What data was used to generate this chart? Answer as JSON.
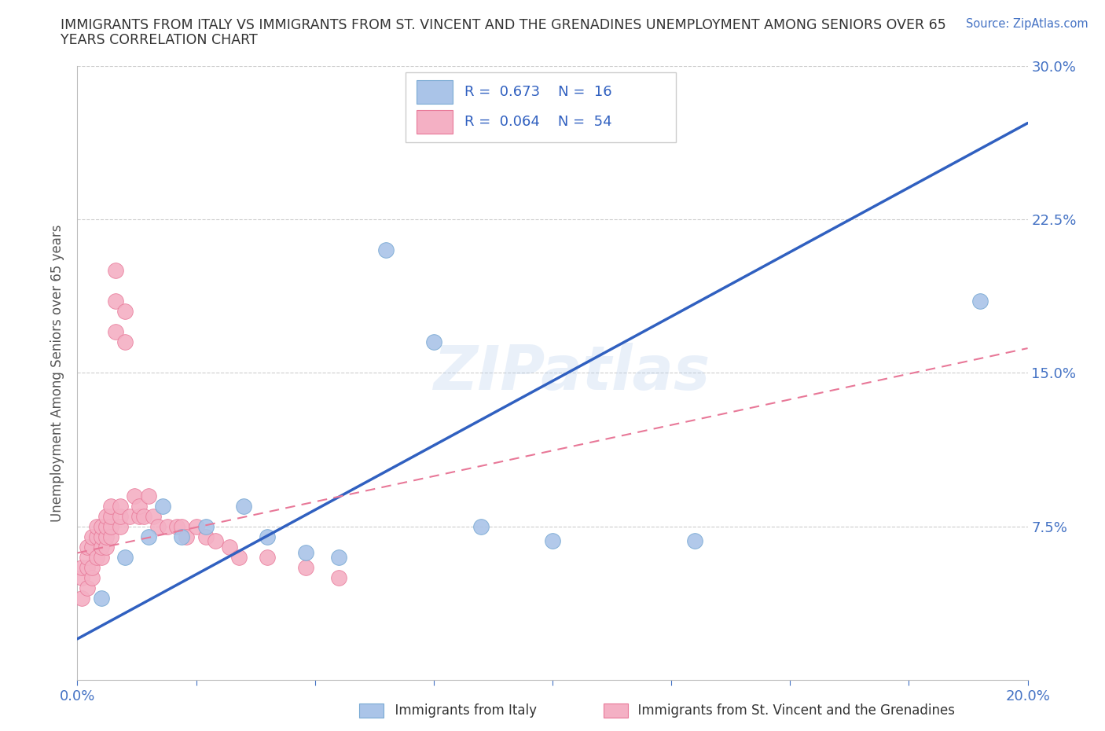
{
  "title_line1": "IMMIGRANTS FROM ITALY VS IMMIGRANTS FROM ST. VINCENT AND THE GRENADINES UNEMPLOYMENT AMONG SENIORS OVER 65",
  "title_line2": "YEARS CORRELATION CHART",
  "source_text": "Source: ZipAtlas.com",
  "ylabel": "Unemployment Among Seniors over 65 years",
  "xlim": [
    0.0,
    0.2
  ],
  "ylim": [
    0.0,
    0.3
  ],
  "title_color": "#333333",
  "tick_color": "#4472c4",
  "watermark": "ZIPatlas",
  "italy_color": "#aac4e8",
  "italy_edge": "#7aaad4",
  "svg_color": "#f4b0c4",
  "svg_edge": "#e87898",
  "blue_line_color": "#3060c0",
  "pink_line_color": "#e87898",
  "legend_text_color": "#3060c0",
  "italy_x": [
    0.005,
    0.01,
    0.015,
    0.018,
    0.022,
    0.027,
    0.035,
    0.04,
    0.048,
    0.055,
    0.065,
    0.075,
    0.085,
    0.1,
    0.13,
    0.19
  ],
  "italy_y": [
    0.04,
    0.06,
    0.07,
    0.085,
    0.07,
    0.075,
    0.085,
    0.07,
    0.062,
    0.06,
    0.21,
    0.165,
    0.075,
    0.068,
    0.068,
    0.185
  ],
  "svg_x": [
    0.001,
    0.001,
    0.001,
    0.002,
    0.002,
    0.002,
    0.002,
    0.003,
    0.003,
    0.003,
    0.003,
    0.004,
    0.004,
    0.004,
    0.005,
    0.005,
    0.005,
    0.005,
    0.006,
    0.006,
    0.006,
    0.006,
    0.007,
    0.007,
    0.007,
    0.007,
    0.008,
    0.008,
    0.008,
    0.009,
    0.009,
    0.009,
    0.01,
    0.01,
    0.011,
    0.012,
    0.013,
    0.013,
    0.014,
    0.015,
    0.016,
    0.017,
    0.019,
    0.021,
    0.022,
    0.023,
    0.025,
    0.027,
    0.029,
    0.032,
    0.034,
    0.04,
    0.048,
    0.055
  ],
  "svg_y": [
    0.04,
    0.05,
    0.055,
    0.045,
    0.055,
    0.06,
    0.065,
    0.05,
    0.055,
    0.065,
    0.07,
    0.06,
    0.07,
    0.075,
    0.06,
    0.065,
    0.07,
    0.075,
    0.065,
    0.07,
    0.075,
    0.08,
    0.07,
    0.075,
    0.08,
    0.085,
    0.2,
    0.185,
    0.17,
    0.075,
    0.08,
    0.085,
    0.18,
    0.165,
    0.08,
    0.09,
    0.08,
    0.085,
    0.08,
    0.09,
    0.08,
    0.075,
    0.075,
    0.075,
    0.075,
    0.07,
    0.075,
    0.07,
    0.068,
    0.065,
    0.06,
    0.06,
    0.055,
    0.05
  ],
  "blue_line_x": [
    0.0,
    0.2
  ],
  "blue_line_y": [
    0.02,
    0.272
  ],
  "pink_line_x": [
    0.0,
    0.2
  ],
  "pink_line_y": [
    0.062,
    0.162
  ]
}
